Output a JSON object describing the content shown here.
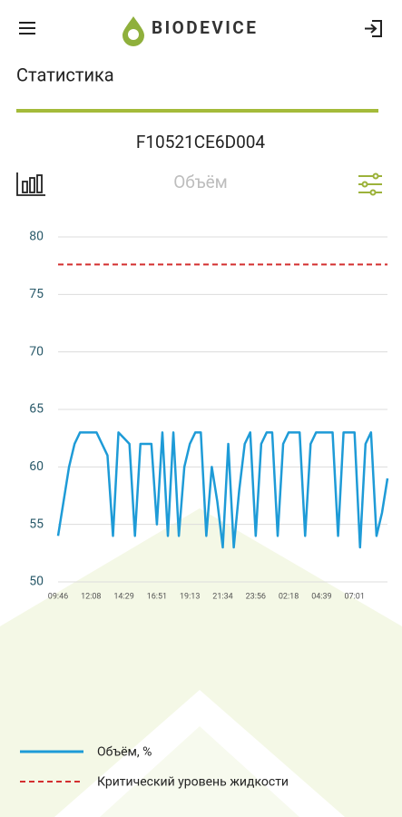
{
  "header": {
    "brand": "BIODEVICE"
  },
  "page_title": "Статистика",
  "device_id": "F10521CE6D004",
  "chart_data": {
    "type": "line",
    "title": "Объём",
    "categories": [
      "09:46",
      null,
      null,
      null,
      null,
      null,
      "12:08",
      null,
      null,
      null,
      null,
      null,
      "14:29",
      null,
      null,
      null,
      null,
      null,
      "16:51",
      null,
      null,
      null,
      null,
      null,
      "19:13",
      null,
      null,
      null,
      null,
      null,
      "21:34",
      null,
      null,
      null,
      null,
      null,
      "23:56",
      null,
      null,
      null,
      null,
      null,
      "02:18",
      null,
      null,
      null,
      null,
      null,
      "04:39",
      null,
      null,
      null,
      null,
      null,
      "07:01",
      null,
      null,
      null,
      null,
      null,
      null
    ],
    "series": [
      {
        "name": "Объём, %",
        "color": "#1e9bd7",
        "values": [
          54,
          57,
          60,
          62,
          63,
          63,
          63,
          63,
          62,
          61,
          54,
          63,
          62.5,
          62,
          54,
          62,
          62,
          62,
          55,
          63,
          54,
          63,
          54,
          60,
          62,
          63,
          63,
          54,
          60,
          57,
          53,
          62,
          53,
          58,
          62,
          63,
          54,
          62,
          63,
          63,
          54,
          62,
          63,
          63,
          63,
          54,
          62,
          63,
          63,
          63,
          63,
          54,
          63,
          63,
          63,
          53,
          62,
          63,
          54,
          56,
          59
        ]
      }
    ],
    "threshold": {
      "name": "Критический уровень жидкости",
      "value": 77.6,
      "color": "#d32f2f"
    },
    "ylim": [
      50,
      80
    ],
    "yticks": [
      50,
      55,
      60,
      65,
      70,
      75,
      80
    ],
    "grid": true
  }
}
